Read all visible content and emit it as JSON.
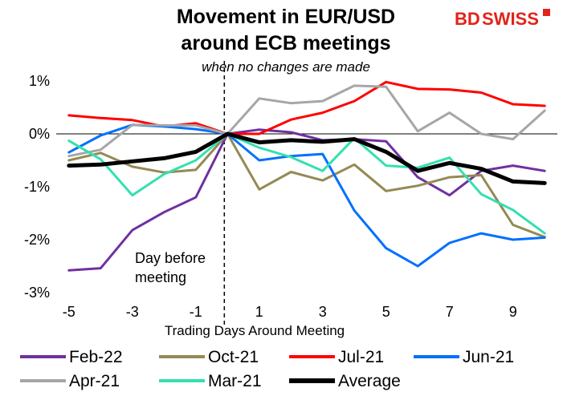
{
  "brand": {
    "name_bd": "BD",
    "name_swiss": "SWISS",
    "color": "#e2231a"
  },
  "chart_data": {
    "type": "line",
    "title_line1": "Movement in EUR/USD",
    "title_line2": "around ECB meetings",
    "subtitle": "when no changes are made",
    "xlabel": "Trading Days Around Meeting",
    "annotation_line1": "Day before",
    "annotation_line2": "meeting",
    "x": [
      -5,
      -4,
      -3,
      -2,
      -1,
      0,
      1,
      2,
      3,
      4,
      5,
      6,
      7,
      8,
      9,
      10
    ],
    "x_tick_values": [
      -5,
      -3,
      -1,
      1,
      3,
      5,
      7,
      9
    ],
    "x_tick_labels": [
      "-5",
      "-3",
      "-1",
      "1",
      "3",
      "5",
      "7",
      "9"
    ],
    "y_tick_values": [
      1,
      0,
      -1,
      -2,
      -3
    ],
    "y_tick_labels": [
      "1%",
      "0%",
      "-1%",
      "-2%",
      "-3%"
    ],
    "xlim": [
      -5.4,
      10.4
    ],
    "ylim": [
      -3,
      1
    ],
    "vertical_marker_x": -0.1,
    "series": [
      {
        "name": "Feb-22",
        "color": "#7030a0",
        "width": 3,
        "values": [
          -2.58,
          -2.54,
          -1.82,
          -1.48,
          -1.2,
          0.0,
          0.08,
          0.03,
          -0.12,
          -0.1,
          -0.14,
          -0.82,
          -1.16,
          -0.7,
          -0.6,
          -0.7
        ]
      },
      {
        "name": "Oct-21",
        "color": "#948a54",
        "width": 3,
        "values": [
          -0.5,
          -0.36,
          -0.62,
          -0.73,
          -0.68,
          0.0,
          -1.05,
          -0.72,
          -0.88,
          -0.58,
          -1.08,
          -0.98,
          -0.82,
          -0.78,
          -1.72,
          -1.95
        ]
      },
      {
        "name": "Jul-21",
        "color": "#ff0000",
        "width": 3,
        "values": [
          0.35,
          0.3,
          0.26,
          0.14,
          0.2,
          0.0,
          0.0,
          0.27,
          0.4,
          0.62,
          0.98,
          0.85,
          0.84,
          0.78,
          0.56,
          0.53
        ]
      },
      {
        "name": "Jun-21",
        "color": "#0070ff",
        "width": 3,
        "values": [
          -0.35,
          -0.03,
          0.17,
          0.14,
          0.09,
          0.0,
          -0.5,
          -0.42,
          -0.38,
          -1.45,
          -2.16,
          -2.5,
          -2.06,
          -1.88,
          -2.0,
          -1.96
        ]
      },
      {
        "name": "Apr-21",
        "color": "#a6a6a6",
        "width": 3,
        "values": [
          -0.42,
          -0.3,
          0.17,
          0.16,
          0.16,
          0.0,
          0.67,
          0.58,
          0.62,
          0.91,
          0.89,
          0.05,
          0.4,
          0.0,
          -0.1,
          0.44
        ]
      },
      {
        "name": "Mar-21",
        "color": "#33e0b0",
        "width": 3,
        "values": [
          -0.13,
          -0.48,
          -1.16,
          -0.76,
          -0.5,
          0.0,
          -0.26,
          -0.44,
          -0.7,
          -0.08,
          -0.6,
          -0.64,
          -0.45,
          -1.14,
          -1.44,
          -1.88
        ]
      },
      {
        "name": "Average",
        "color": "#000000",
        "width": 5,
        "values": [
          -0.6,
          -0.58,
          -0.52,
          -0.46,
          -0.34,
          0.0,
          -0.16,
          -0.12,
          -0.15,
          -0.1,
          -0.34,
          -0.7,
          -0.55,
          -0.66,
          -0.9,
          -0.93
        ]
      }
    ],
    "legend_position": "bottom",
    "grid": false
  }
}
